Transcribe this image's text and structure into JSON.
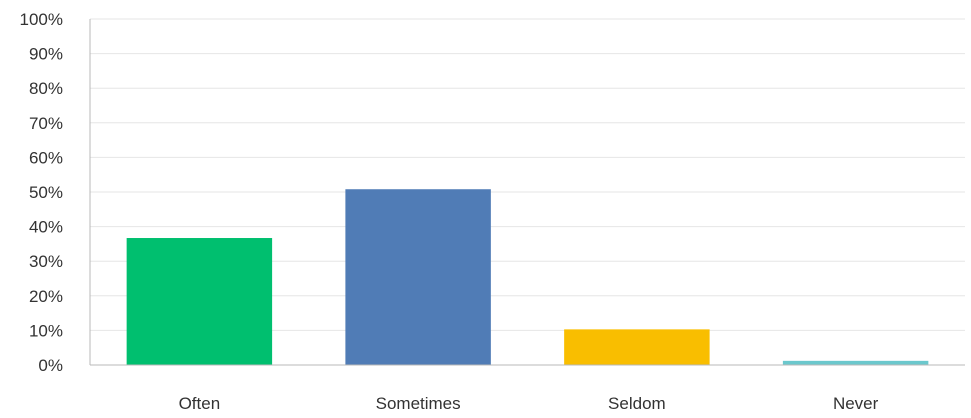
{
  "chart_data": {
    "type": "bar",
    "title": "",
    "xlabel": "",
    "ylabel": "",
    "categories": [
      "Often",
      "Sometimes",
      "Seldom",
      "Never"
    ],
    "values": [
      36.7,
      50.8,
      10.3,
      1.2
    ],
    "colors": [
      "#00bf6f",
      "#507cb6",
      "#f9be00",
      "#6bc8cd"
    ],
    "ylim": [
      0,
      100
    ],
    "yticks": [
      0,
      10,
      20,
      30,
      40,
      50,
      60,
      70,
      80,
      90,
      100
    ],
    "ytick_labels": [
      "0%",
      "10%",
      "20%",
      "30%",
      "40%",
      "50%",
      "60%",
      "70%",
      "80%",
      "90%",
      "100%"
    ],
    "grid": true,
    "legend": "none"
  }
}
